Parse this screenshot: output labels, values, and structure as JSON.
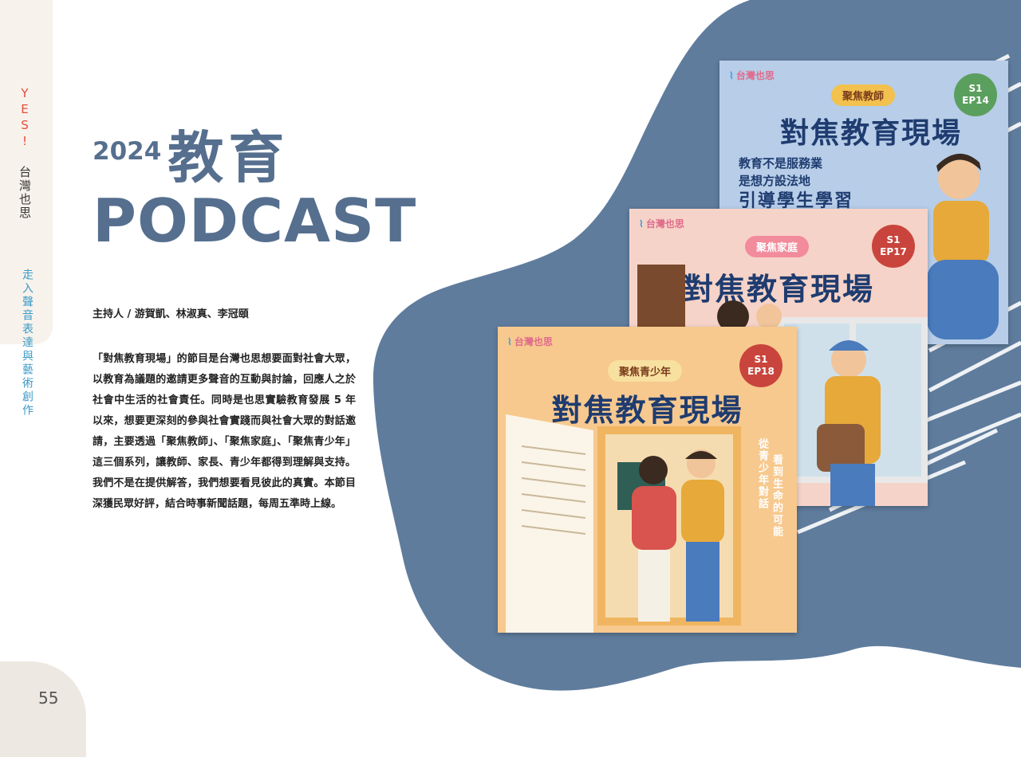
{
  "sidebar": {
    "magazine_prefix": "YES!",
    "magazine_name": "台灣也思",
    "section": "走入聲音表達與藝術創作"
  },
  "heading": {
    "year": "2024",
    "topic": "教育",
    "format": "PODCAST"
  },
  "hosts": "主持人 / 游賀凱、林淑真、李冠頤",
  "body": "「對焦教育現場」的節目是台灣也思想要面對社會大眾，以教育為議題的邀請更多聲音的互動與討論，回應人之於社會中生活的社會責任。同時是也思實驗教育發展 5 年以來，想要更深刻的參與社會實踐而與社會大眾的對話邀請，主要透過「聚焦教師」、「聚焦家庭」、「聚焦青少年」這三個系列，讓教師、家長、青少年都得到理解與支持。我們不是在提供解答，我們想要看見彼此的真實。本節目深獲民眾好評，結合時事新聞話題，每周五準時上線。",
  "covers": [
    {
      "logo": "台灣也思",
      "series": "聚焦教師",
      "episode": "S1\nEP14",
      "title": "對焦教育現場",
      "tagline_1": "教育不是服務業",
      "tagline_2": "是想方設法地",
      "tagline_3": "引導學生學習"
    },
    {
      "logo": "台灣也思",
      "series": "聚焦家庭",
      "episode": "S1\nEP17",
      "title": "對焦教育現場"
    },
    {
      "logo": "台灣也思",
      "series": "聚焦青少年",
      "episode": "S1\nEP18",
      "title": "對焦教育現場",
      "side_1": "從青少年對話",
      "side_2": "看到生命的可能"
    }
  ],
  "page_number": "55",
  "colors": {
    "accent": "#566f8f",
    "blob": "#5f7c9d",
    "section": "#3b9ac9"
  }
}
